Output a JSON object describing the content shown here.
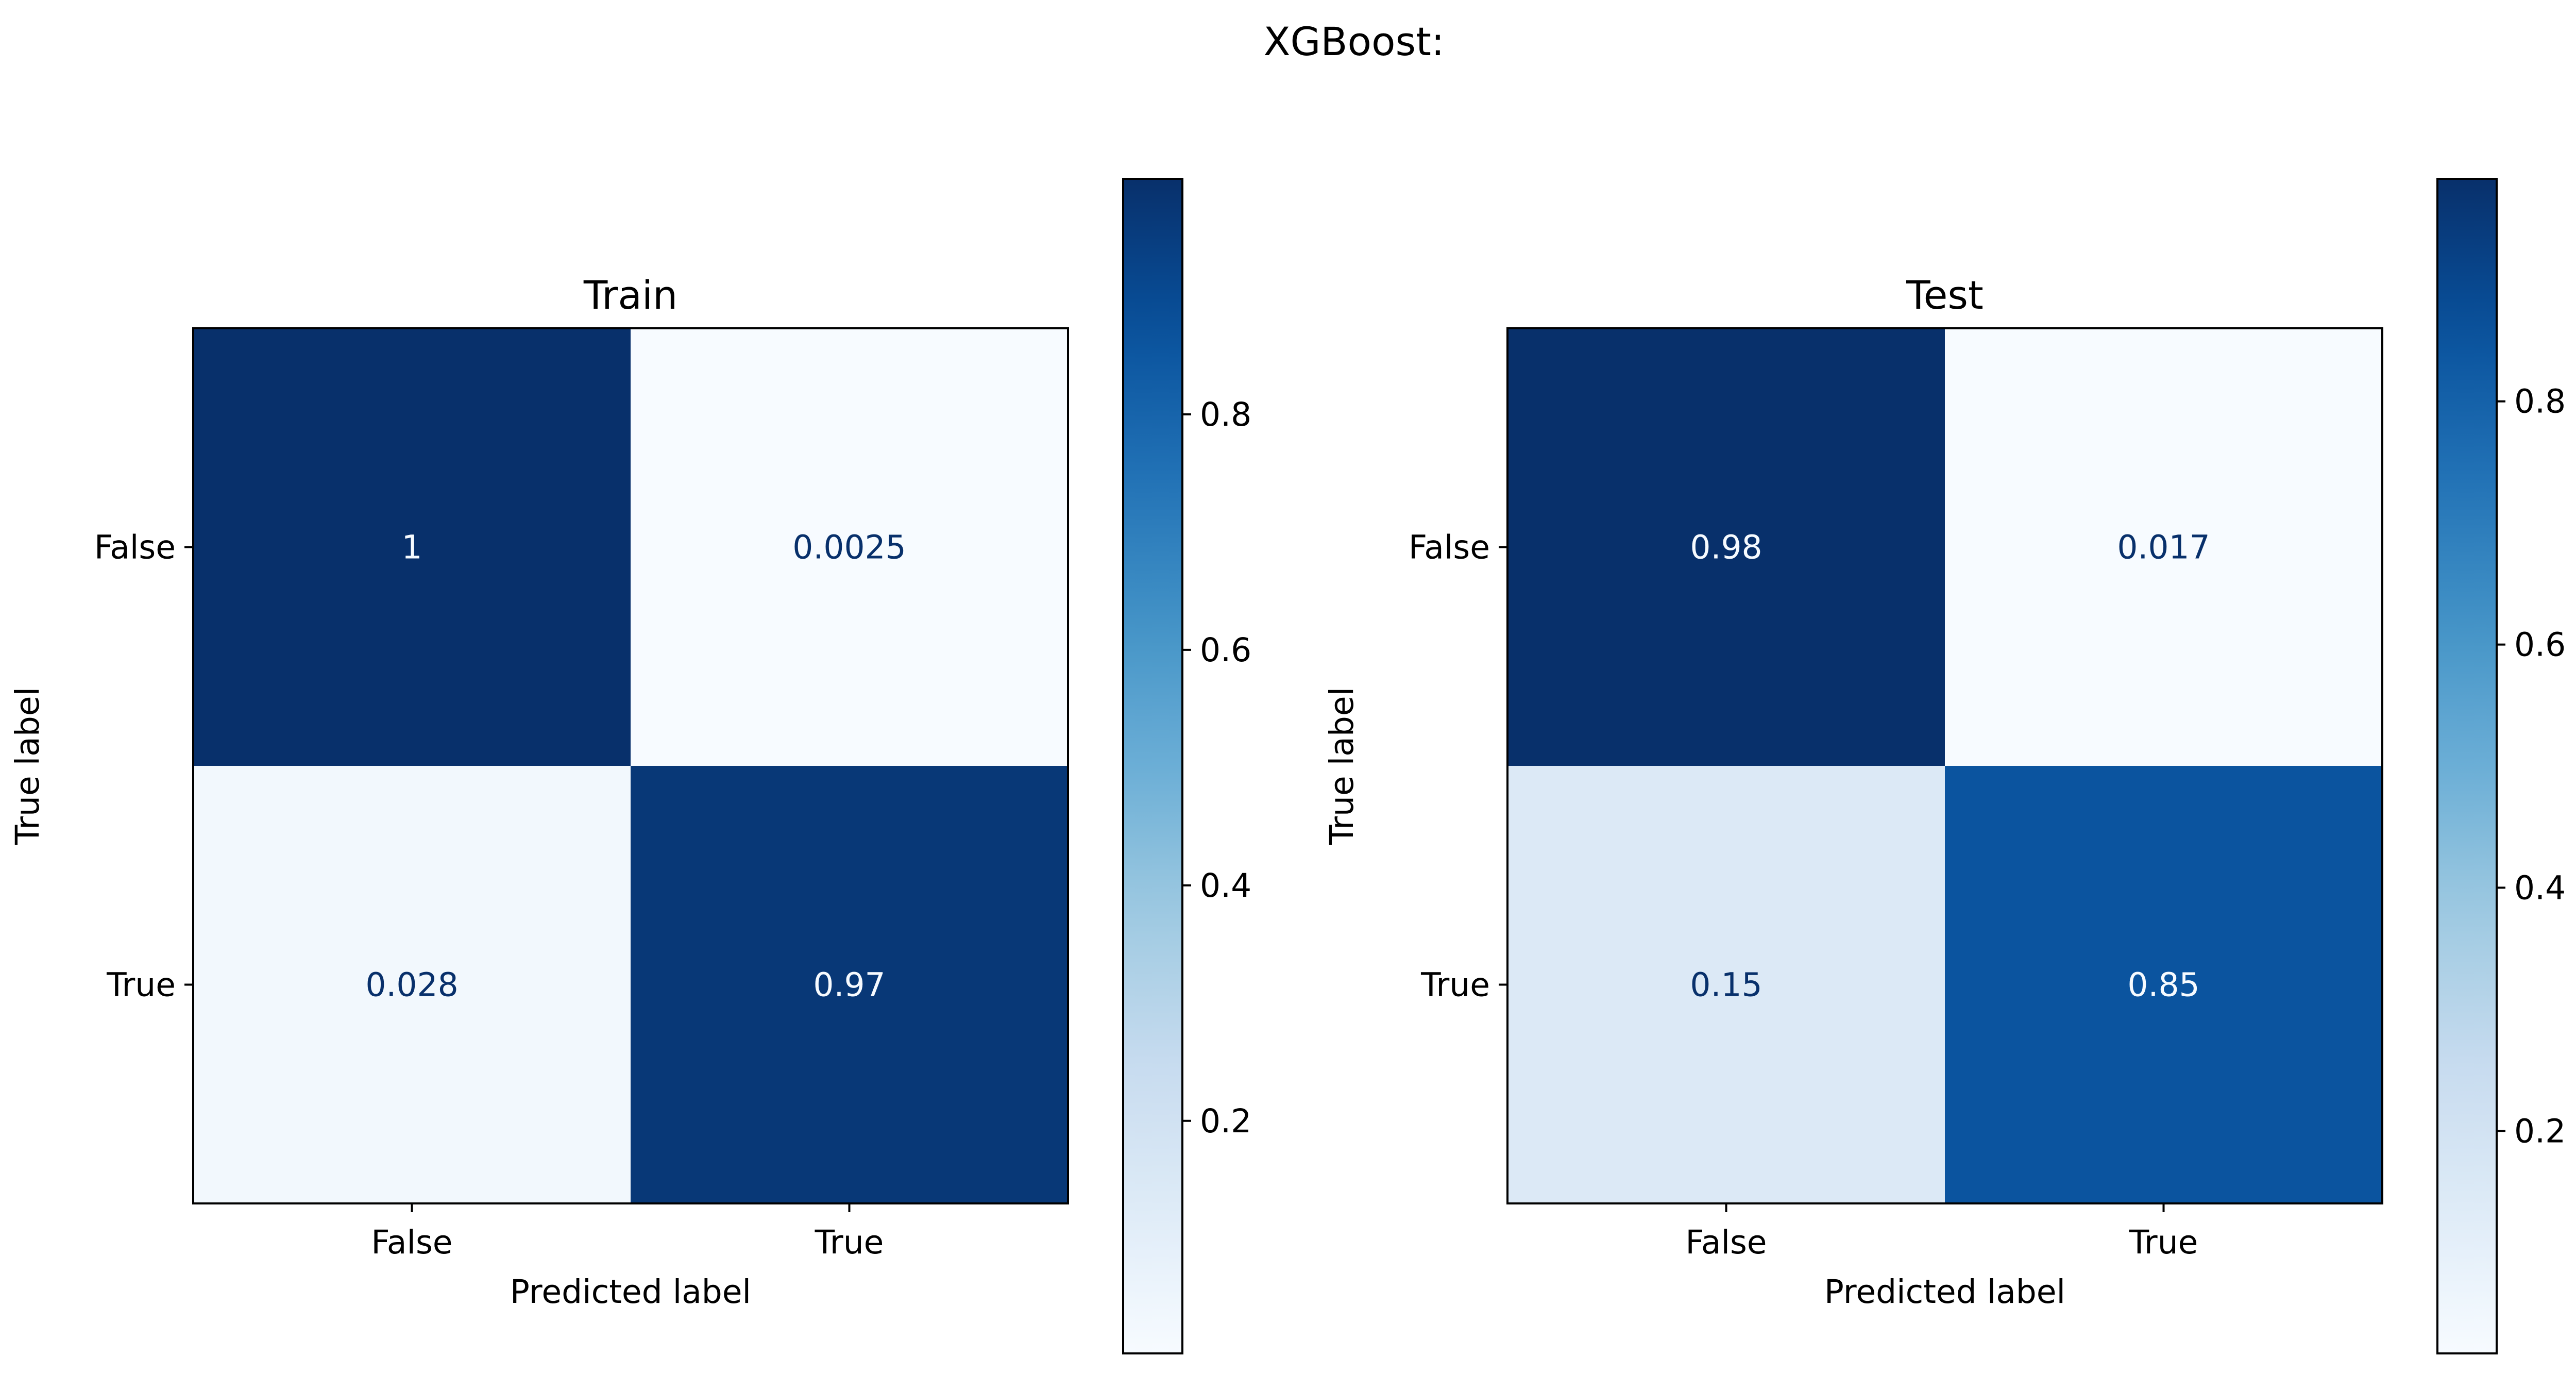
{
  "suptitle": "XGBoost:",
  "chart_data": [
    {
      "type": "heatmap",
      "title": "Train",
      "xlabel": "Predicted label",
      "ylabel": "True label",
      "x_categories": [
        "False",
        "True"
      ],
      "y_categories": [
        "False",
        "True"
      ],
      "values": [
        [
          1.0,
          0.0025
        ],
        [
          0.028,
          0.97
        ]
      ],
      "value_labels": [
        [
          "1",
          "0.0025"
        ],
        [
          "0.028",
          "0.97"
        ]
      ],
      "colormap": "Blues",
      "colorbar": {
        "range": [
          0.0025,
          1.0
        ],
        "ticks": [
          0.2,
          0.4,
          0.6,
          0.8
        ],
        "tick_labels": [
          "0.2",
          "0.4",
          "0.6",
          "0.8"
        ]
      }
    },
    {
      "type": "heatmap",
      "title": "Test",
      "xlabel": "Predicted label",
      "ylabel": "True label",
      "x_categories": [
        "False",
        "True"
      ],
      "y_categories": [
        "False",
        "True"
      ],
      "values": [
        [
          0.983,
          0.017
        ],
        [
          0.15,
          0.85
        ]
      ],
      "value_labels": [
        [
          "0.98",
          "0.017"
        ],
        [
          "0.15",
          "0.85"
        ]
      ],
      "colormap": "Blues",
      "colorbar": {
        "range": [
          0.017,
          0.983
        ],
        "ticks": [
          0.2,
          0.4,
          0.6,
          0.8
        ],
        "tick_labels": [
          "0.2",
          "0.4",
          "0.6",
          "0.8"
        ]
      }
    }
  ]
}
